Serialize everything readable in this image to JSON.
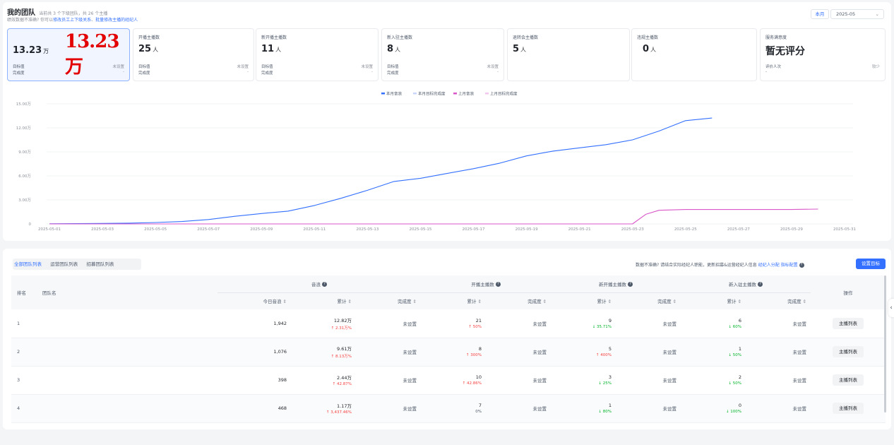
{
  "header": {
    "title": "我的团队",
    "subtitle": "当前共 3 个下级团队，共 26 个主播",
    "hint_prefix": "绩效数据不准确? 你可以",
    "hint_link1": "修改员工上下级关系",
    "hint_sep": "、",
    "hint_link2": "批量修改主播的经纪人",
    "period_button": "本月",
    "month_value": "2025-05",
    "month_chevron": "⌄"
  },
  "cards": [
    {
      "title": "",
      "value": "13.23",
      "unit": "万",
      "overlay": "13.23万",
      "target_label": "目标值",
      "target_value": "未设置",
      "rate_label": "完成度",
      "rate_value": "-"
    },
    {
      "title": "开播主播数",
      "value": "25",
      "unit": "人",
      "target_label": "目标值",
      "target_value": "未设置",
      "rate_label": "完成度",
      "rate_value": "-"
    },
    {
      "title": "新开播主播数",
      "value": "11",
      "unit": "人",
      "target_label": "目标值",
      "target_value": "未设置",
      "rate_label": "完成度",
      "rate_value": "-"
    },
    {
      "title": "新入驻主播数",
      "value": "8",
      "unit": "人",
      "target_label": "目标值",
      "target_value": "未设置",
      "rate_label": "完成度",
      "rate_value": "-"
    },
    {
      "title": "退转会主播数",
      "value": "5",
      "unit": "人"
    },
    {
      "title": "违规主播数",
      "value": "0",
      "unit": "人"
    },
    {
      "title": "服务满意度",
      "value": "暂无评分",
      "unit": "",
      "target_label": "评价人次",
      "target_value": "较少",
      "rate_label": "-",
      "rate_value": ""
    }
  ],
  "chart_data": {
    "type": "line",
    "legend": [
      "本月音浪",
      "本月目标完成度",
      "上月音浪",
      "上月目标完成度"
    ],
    "legend_colors": [
      "#3370ff",
      "#c9d7ff",
      "#d957c9",
      "#f2c6ee"
    ],
    "y_ticks": [
      "0",
      "3.00万",
      "6.00万",
      "9.00万",
      "12.00万",
      "15.00万"
    ],
    "ylim": [
      0,
      15
    ],
    "x_ticks": [
      "2025-05-01",
      "2025-05-03",
      "2025-05-05",
      "2025-05-07",
      "2025-05-09",
      "2025-05-11",
      "2025-05-13",
      "2025-05-15",
      "2025-05-17",
      "2025-05-19",
      "2025-05-21",
      "2025-05-23",
      "2025-05-25",
      "2025-05-27",
      "2025-05-29",
      "2025-05-31"
    ],
    "series": [
      {
        "name": "本月音浪",
        "color": "#3370ff",
        "x": [
          1,
          2,
          3,
          4,
          5,
          6,
          7,
          8,
          9,
          10,
          11,
          12,
          13,
          14,
          15,
          16,
          17,
          18,
          19,
          20,
          21,
          22,
          23,
          24,
          25,
          26
        ],
        "values": [
          0.02,
          0.04,
          0.06,
          0.1,
          0.18,
          0.3,
          0.55,
          0.95,
          1.3,
          1.6,
          2.3,
          3.2,
          4.2,
          5.3,
          5.7,
          6.3,
          6.9,
          7.6,
          8.5,
          9.1,
          9.5,
          9.9,
          10.5,
          11.6,
          12.9,
          13.23
        ]
      },
      {
        "name": "上月音浪",
        "color": "#d957c9",
        "x": [
          1,
          5,
          10,
          15,
          20,
          22,
          23,
          23.5,
          24,
          25,
          26,
          27,
          28,
          29,
          30
        ],
        "values": [
          0,
          0,
          0,
          0,
          0,
          0,
          0,
          1.2,
          1.7,
          1.8,
          1.8,
          1.8,
          1.8,
          1.8,
          1.85
        ]
      }
    ]
  },
  "table_section": {
    "tabs": [
      "全部团队列表",
      "运营团队列表",
      "招募团队列表"
    ],
    "notice_prefix": "数据不准确? 请结合实际经纪人职能，更新招募&运营经纪人信息",
    "notice_link1": "经纪人分配",
    "notice_link2": "指标配置",
    "set_target_button": "设置目标",
    "help_glyph": "?",
    "sort_glyph": "⇕",
    "headers": {
      "rank": "排名",
      "team": "团队名",
      "yinlang": "音浪",
      "kaibo": "开播主播数",
      "xinkai": "新开播主播数",
      "xinru": "新入驻主播数",
      "today": "今日音浪",
      "total": "累计",
      "rate": "完成度",
      "op": "操作"
    },
    "rows": [
      {
        "rank": "1",
        "today": "1,942",
        "y_total": "12.82万",
        "y_chg": "↑ 2.31万%",
        "y_rate": "未设置",
        "k_total": "21",
        "k_chg": "↑ 50%",
        "k_rate": "未设置",
        "x_total": "9",
        "x_chg": "↓ 35.71%",
        "x_rate": "未设置",
        "r_total": "6",
        "r_chg": "↓ 60%",
        "r_rate": "未设置",
        "op": "主播列表"
      },
      {
        "rank": "2",
        "today": "1,076",
        "y_total": "9.61万",
        "y_chg": "↑ 8.13万%",
        "y_rate": "未设置",
        "k_total": "8",
        "k_chg": "↑ 300%",
        "k_rate": "未设置",
        "x_total": "5",
        "x_chg": "↑ 400%",
        "x_rate": "未设置",
        "r_total": "1",
        "r_chg": "↓ 50%",
        "r_rate": "未设置",
        "op": "主播列表"
      },
      {
        "rank": "3",
        "today": "398",
        "y_total": "2.44万",
        "y_chg": "↑ 42.87%",
        "y_rate": "未设置",
        "k_total": "10",
        "k_chg": "↑ 42.86%",
        "k_rate": "未设置",
        "x_total": "3",
        "x_chg": "↓ 25%",
        "x_rate": "未设置",
        "r_total": "2",
        "r_chg": "↓ 50%",
        "r_rate": "未设置",
        "op": "主播列表"
      },
      {
        "rank": "4",
        "today": "468",
        "y_total": "1.17万",
        "y_chg": "↑ 3,437.46%",
        "y_rate": "未设置",
        "k_total": "7",
        "k_chg": "0%",
        "k_rate": "未设置",
        "x_total": "1",
        "x_chg": "↓ 80%",
        "x_rate": "未设置",
        "r_total": "0",
        "r_chg": "↓ 100%",
        "r_rate": "未设置",
        "op": "主播列表"
      }
    ],
    "row_chg_dirs": [
      [
        "up",
        "up",
        "down",
        "down"
      ],
      [
        "up",
        "up",
        "up",
        "down"
      ],
      [
        "up",
        "up",
        "down",
        "down"
      ],
      [
        "up",
        "flat",
        "down",
        "down"
      ]
    ]
  },
  "side_handle": "‹"
}
